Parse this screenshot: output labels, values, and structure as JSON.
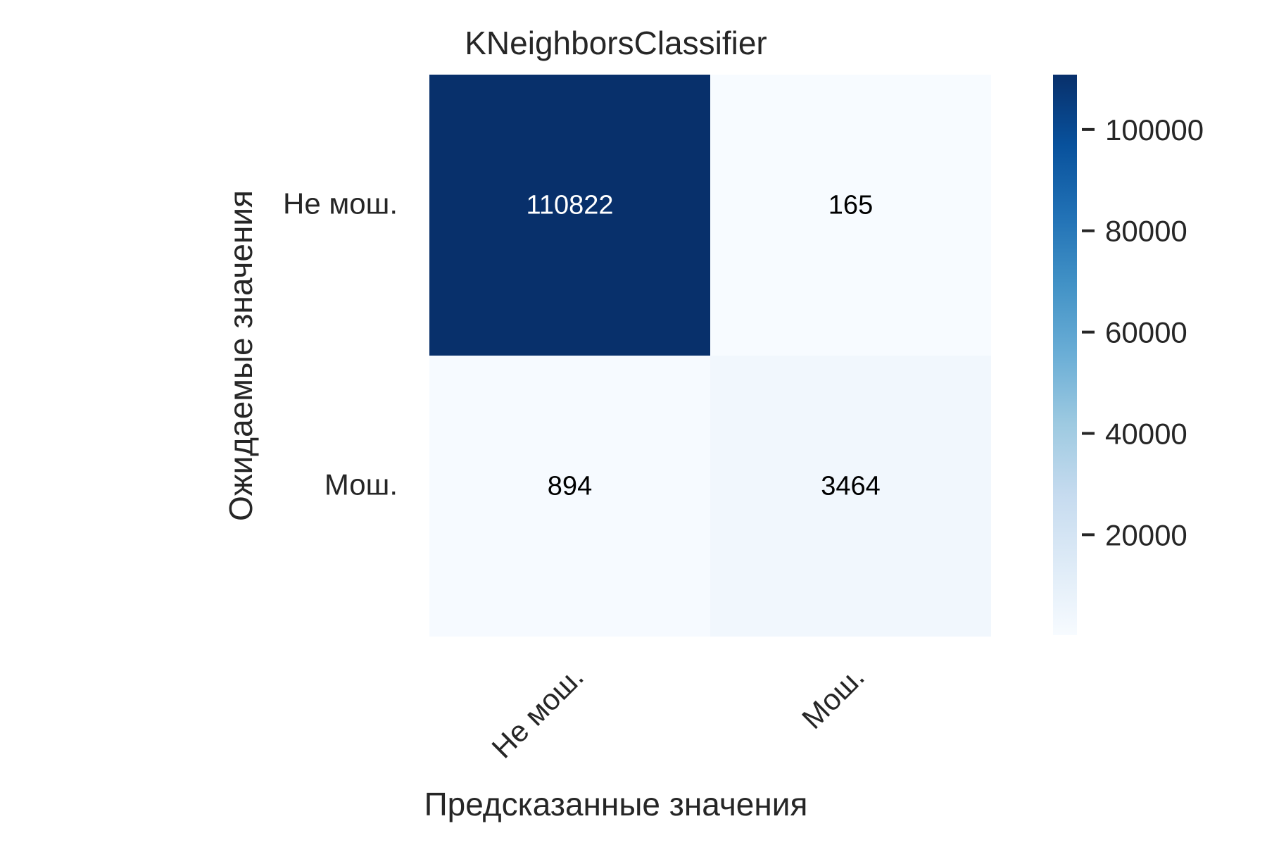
{
  "chart_data": {
    "type": "heatmap",
    "title": "KNeighborsClassifier",
    "xlabel": "Предсказанные значения",
    "ylabel": "Ожидаемые значения",
    "x_categories": [
      "Не мош.",
      "Мош."
    ],
    "y_categories": [
      "Не мош.",
      "Мош."
    ],
    "values": [
      [
        110822,
        165
      ],
      [
        894,
        3464
      ]
    ],
    "colormap": "Blues",
    "colorbar": {
      "min": 165,
      "max": 110822,
      "ticks": [
        20000,
        40000,
        60000,
        80000,
        100000
      ],
      "tick_labels": [
        "20000",
        "40000",
        "60000",
        "80000",
        "100000"
      ]
    },
    "grid": false
  }
}
